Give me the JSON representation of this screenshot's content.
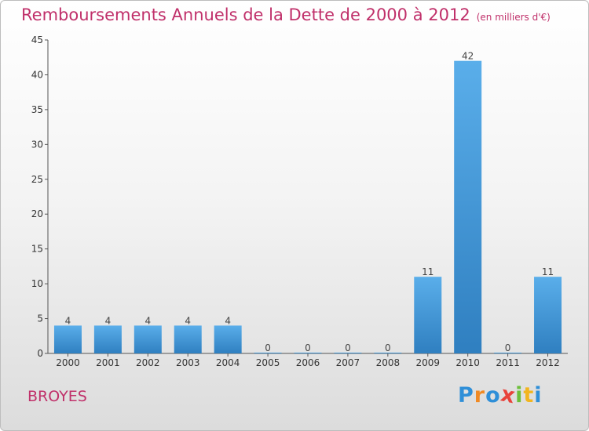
{
  "header": {
    "title": "Remboursements Annuels de la Dette de 2000 à 2012",
    "unit": "(en milliers d'€)"
  },
  "footer": {
    "place": "BROYES",
    "logo_letters": [
      "P",
      "r",
      "o",
      "x",
      "i",
      "t",
      "i"
    ],
    "logo_colors": [
      "#2f8fd8",
      "#f08a24",
      "#2f8fd8",
      "#e8433b",
      "#6cbf3a",
      "#f2b51f",
      "#2f8fd8"
    ]
  },
  "chart_data": {
    "type": "bar",
    "categories": [
      "2000",
      "2001",
      "2002",
      "2003",
      "2004",
      "2005",
      "2006",
      "2007",
      "2008",
      "2009",
      "2010",
      "2011",
      "2012"
    ],
    "values": [
      4,
      4,
      4,
      4,
      4,
      0,
      0,
      0,
      0,
      11,
      42,
      0,
      11
    ],
    "data_labels": [
      "4",
      "4",
      "4",
      "4",
      "4",
      "0",
      "0",
      "0",
      "0",
      "11",
      "42",
      "0",
      "11"
    ],
    "ylim": [
      0,
      45
    ],
    "yticks": [
      0,
      5,
      10,
      15,
      20,
      25,
      30,
      35,
      40,
      45
    ],
    "bar_color_top": "#5aaeea",
    "bar_color_bottom": "#2f7fc0",
    "grid": false
  }
}
